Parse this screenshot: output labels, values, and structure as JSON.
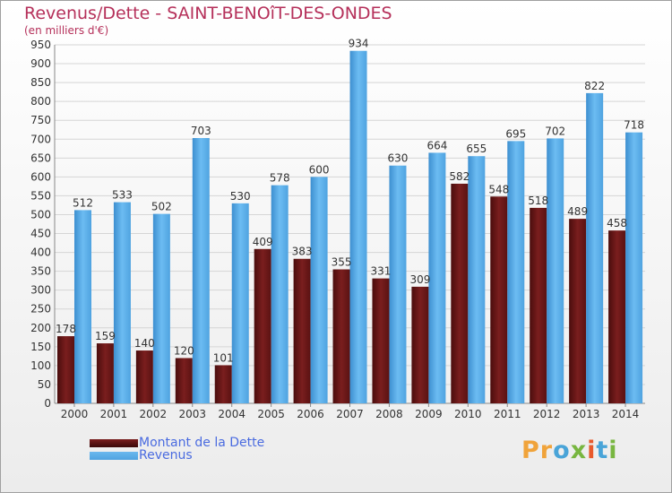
{
  "header": {
    "title": "Revenus/Dette - SAINT-BENOîT-DES-ONDES",
    "subtitle": "(en milliers d'€)"
  },
  "legend": {
    "items": [
      {
        "label": "Montant de la Dette"
      },
      {
        "label": "Revenus"
      }
    ]
  },
  "logo": {
    "text": "Proxiti"
  },
  "colors": {
    "debt": "#7a1e1e",
    "revenue": "#4fa3e0",
    "title": "#b5305a",
    "legend_text": "#4a6be0",
    "value_label": "#333333",
    "grid": "#d5d5d5"
  },
  "chart_data": {
    "type": "bar",
    "title": "Revenus/Dette - SAINT-BENOîT-DES-ONDES",
    "subtitle": "(en milliers d'€)",
    "categories": [
      "2000",
      "2001",
      "2002",
      "2003",
      "2004",
      "2005",
      "2006",
      "2007",
      "2008",
      "2009",
      "2010",
      "2011",
      "2012",
      "2013",
      "2014"
    ],
    "series": [
      {
        "name": "Montant de la Dette",
        "values": [
          178,
          159,
          140,
          120,
          101,
          409,
          383,
          355,
          331,
          309,
          582,
          548,
          518,
          489,
          458
        ]
      },
      {
        "name": "Revenus",
        "values": [
          512,
          533,
          502,
          703,
          530,
          578,
          600,
          934,
          630,
          664,
          655,
          695,
          702,
          822,
          718
        ]
      }
    ],
    "yticks": [
      0,
      50,
      100,
      150,
      200,
      250,
      300,
      350,
      400,
      450,
      500,
      550,
      600,
      650,
      700,
      750,
      800,
      850,
      900,
      950
    ],
    "ylim": [
      0,
      950
    ],
    "grid": true,
    "legend_position": "bottom-left"
  }
}
